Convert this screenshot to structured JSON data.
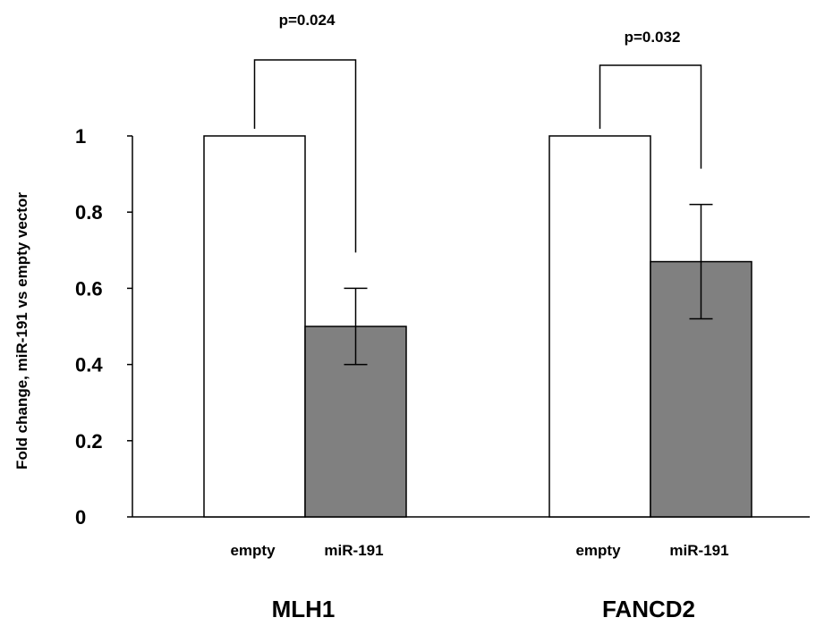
{
  "chart_data": {
    "type": "bar",
    "ylabel": "Fold change, miR-191 vs empty vector",
    "yticks": [
      "0",
      "0.2",
      "0.4",
      "0.6",
      "0.8",
      "1"
    ],
    "ylim": [
      0,
      1
    ],
    "groups": [
      {
        "name": "MLH1",
        "p_value": "p=0.024",
        "bars": [
          {
            "label": "empty",
            "value": 1.0,
            "color": "#ffffff"
          },
          {
            "label": "miR-191",
            "value": 0.5,
            "error": 0.1,
            "color": "#808080"
          }
        ]
      },
      {
        "name": "FANCD2",
        "p_value": "p=0.032",
        "bars": [
          {
            "label": "empty",
            "value": 1.0,
            "color": "#ffffff"
          },
          {
            "label": "miR-191",
            "value": 0.67,
            "error": 0.15,
            "color": "#808080"
          }
        ]
      }
    ],
    "grid": false,
    "legend": "none"
  }
}
